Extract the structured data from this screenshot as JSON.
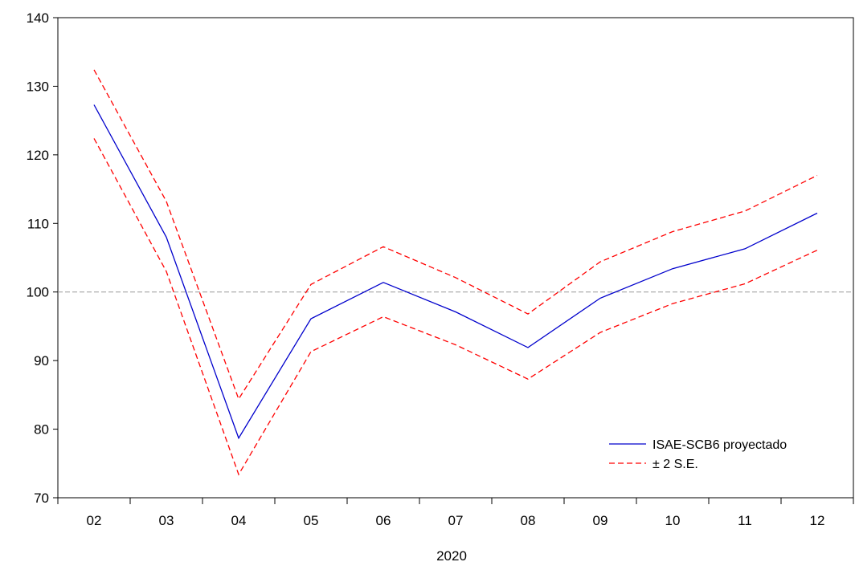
{
  "chart_data": {
    "type": "line",
    "categories": [
      "02",
      "03",
      "04",
      "05",
      "06",
      "07",
      "08",
      "09",
      "10",
      "11",
      "12"
    ],
    "xlabel": "2020",
    "ylabel": "",
    "ylim": [
      70,
      140
    ],
    "yticks": [
      70,
      80,
      90,
      100,
      110,
      120,
      130,
      140
    ],
    "reference_line": {
      "y": 100,
      "color": "#999999",
      "style": "dashed"
    },
    "series": [
      {
        "name": "ISAE-SCB6 proyectado",
        "color": "#0000cc",
        "style": "solid",
        "values": [
          127.3,
          108.0,
          78.7,
          96.1,
          101.4,
          97.1,
          91.9,
          99.1,
          103.4,
          106.3,
          111.5
        ]
      },
      {
        "name": "± 2 S.E.",
        "color": "#ff0000",
        "style": "dashed",
        "values": [
          132.4,
          113.2,
          84.4,
          101.1,
          106.6,
          102.1,
          96.8,
          104.4,
          108.8,
          111.8,
          117.0
        ]
      },
      {
        "name": "",
        "color": "#ff0000",
        "style": "dashed",
        "values": [
          122.4,
          103.0,
          73.4,
          91.3,
          96.4,
          92.3,
          87.3,
          94.1,
          98.3,
          101.2,
          106.1
        ]
      }
    ],
    "legend": {
      "placement": "bottom-right",
      "entries": [
        {
          "label": "ISAE-SCB6 proyectado",
          "color": "#0000cc",
          "style": "solid"
        },
        {
          "label": "± 2 S.E.",
          "color": "#ff0000",
          "style": "dashed"
        }
      ]
    },
    "grid": false
  }
}
